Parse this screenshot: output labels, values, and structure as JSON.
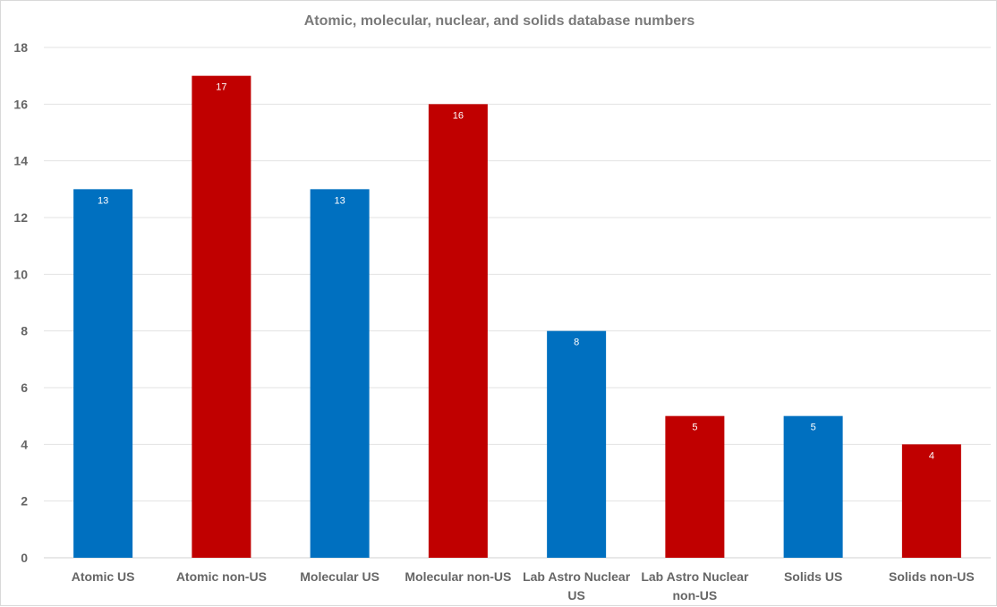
{
  "chart_data": {
    "type": "bar",
    "title": "Atomic, molecular, nuclear, and solids database numbers",
    "categories": [
      [
        "Atomic US"
      ],
      [
        "Atomic non-US"
      ],
      [
        "Molecular US"
      ],
      [
        "Molecular non-US"
      ],
      [
        "Lab Astro Nuclear",
        "US"
      ],
      [
        "Lab Astro Nuclear",
        "non-US"
      ],
      [
        "Solids US"
      ],
      [
        "Solids non-US"
      ]
    ],
    "values": [
      13,
      17,
      13,
      16,
      8,
      5,
      5,
      4
    ],
    "data_labels": [
      "13",
      "17",
      "13",
      "16",
      "8",
      "5",
      "5",
      "4"
    ],
    "bar_colors": [
      "#0070c0",
      "#c00000",
      "#0070c0",
      "#c00000",
      "#0070c0",
      "#c00000",
      "#0070c0",
      "#c00000"
    ],
    "yticks": [
      "0",
      "2",
      "4",
      "6",
      "8",
      "10",
      "12",
      "14",
      "16",
      "18"
    ],
    "ylim": [
      0,
      18
    ],
    "ystep": 2,
    "grid": true,
    "legend": "none",
    "xlabel": "",
    "ylabel": ""
  }
}
